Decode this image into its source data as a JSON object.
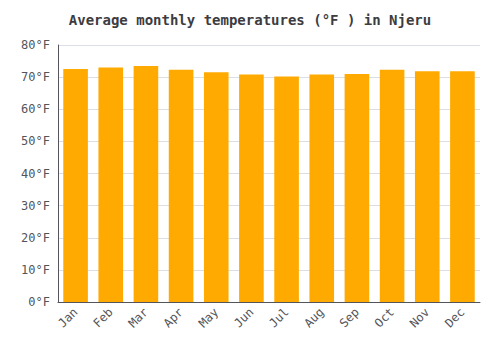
{
  "chart_data": {
    "type": "bar",
    "title": "Average monthly temperatures (°F ) in Njeru",
    "categories": [
      "Jan",
      "Feb",
      "Mar",
      "Apr",
      "May",
      "Jun",
      "Jul",
      "Aug",
      "Sep",
      "Oct",
      "Nov",
      "Dec"
    ],
    "values": [
      72.5,
      73.0,
      73.5,
      72.3,
      71.5,
      70.8,
      70.2,
      70.8,
      71.0,
      72.3,
      71.8,
      71.8
    ],
    "color": "#FFAA00",
    "ylim": [
      0,
      80
    ],
    "yticks": [
      {
        "value": 0,
        "label": "0°F"
      },
      {
        "value": 10,
        "label": "10°F"
      },
      {
        "value": 20,
        "label": "20°F"
      },
      {
        "value": 30,
        "label": "30°F"
      },
      {
        "value": 40,
        "label": "40°F"
      },
      {
        "value": 50,
        "label": "50°F"
      },
      {
        "value": 60,
        "label": "60°F"
      },
      {
        "value": 70,
        "label": "70°F"
      },
      {
        "value": 80,
        "label": "80°F"
      }
    ],
    "grid": true
  }
}
